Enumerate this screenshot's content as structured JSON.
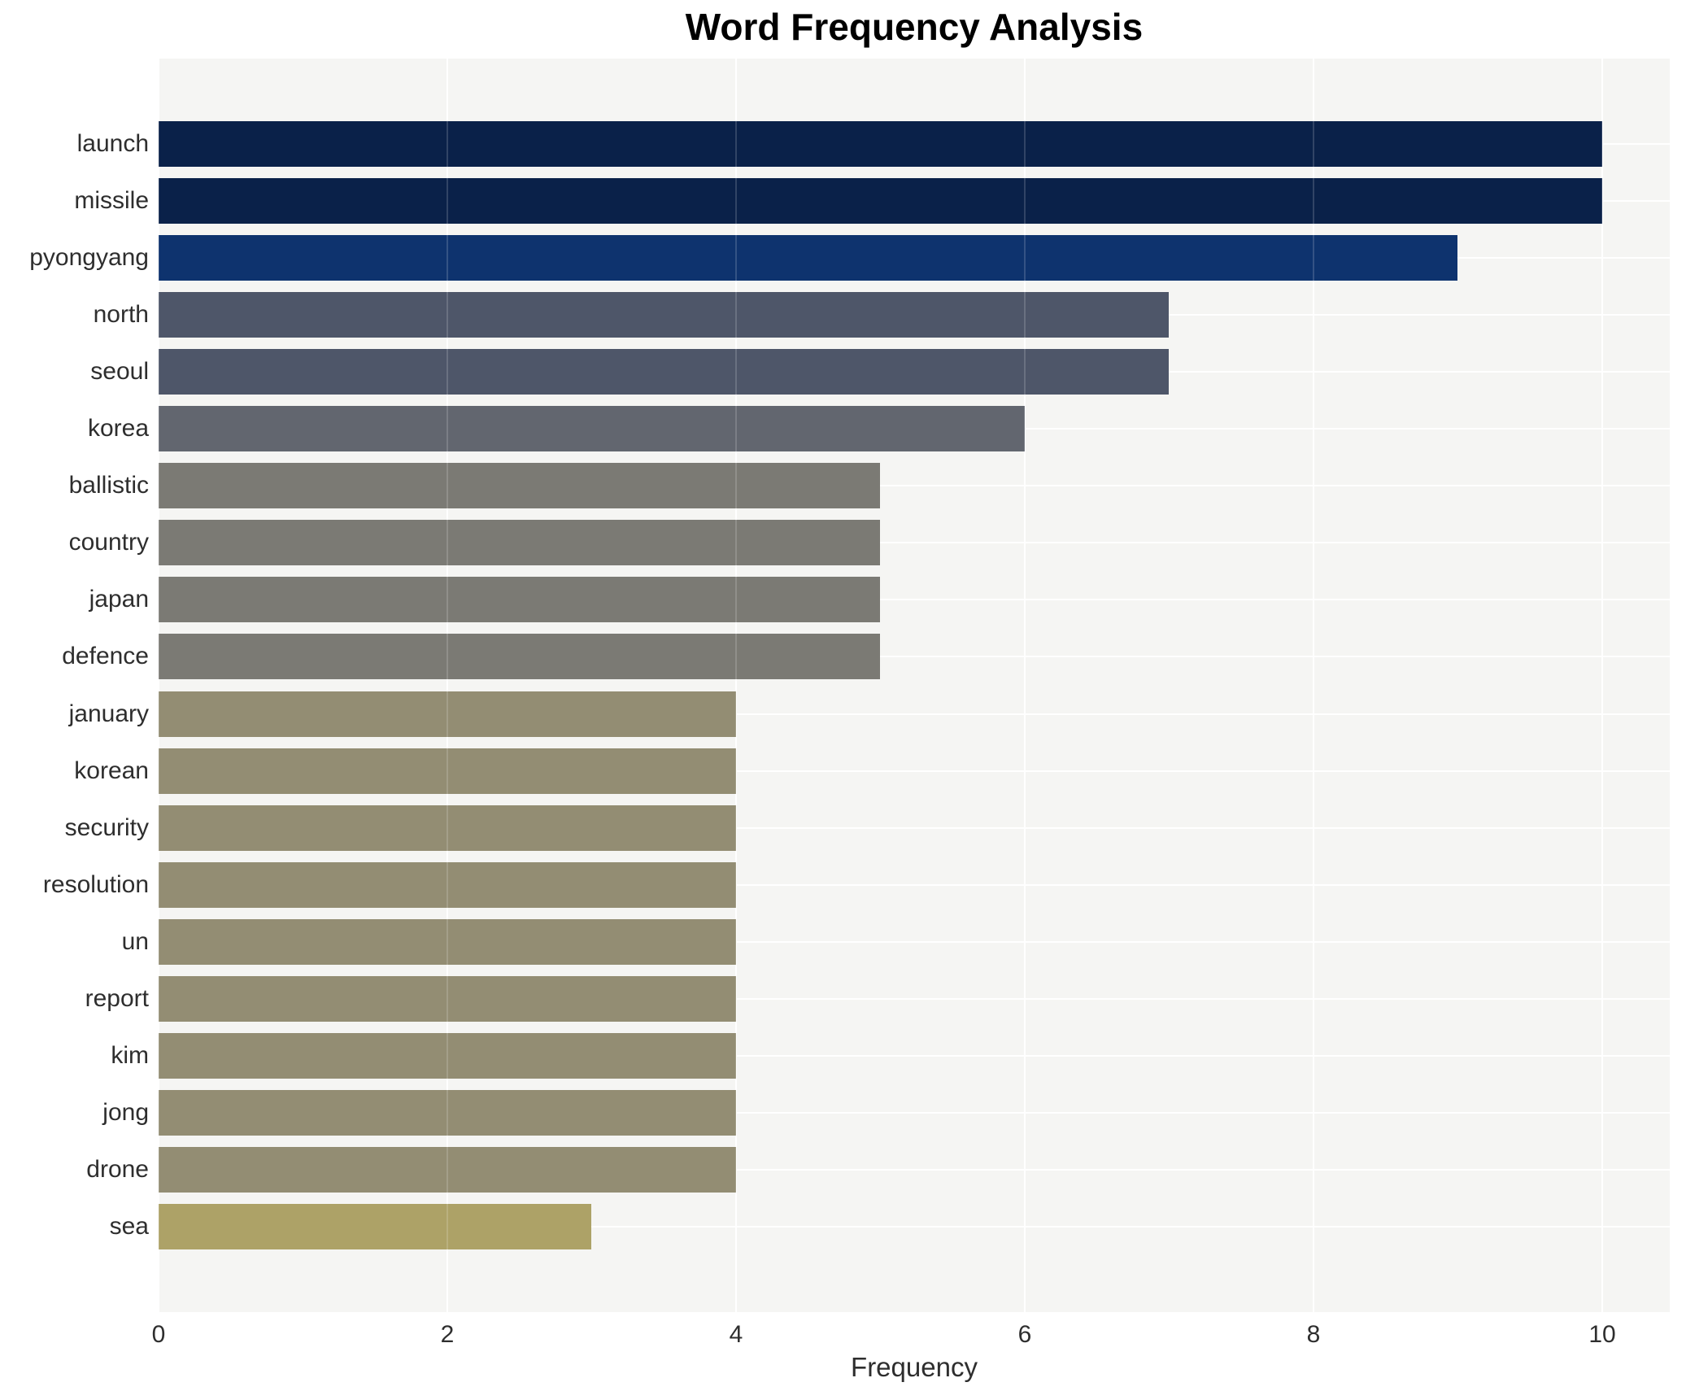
{
  "chart_data": {
    "type": "bar",
    "orientation": "horizontal",
    "title": "Word Frequency Analysis",
    "xlabel": "Frequency",
    "ylabel": "",
    "grid": true,
    "legend": "none",
    "xlim": [
      0,
      10.47
    ],
    "xticks": [
      0,
      2,
      4,
      6,
      8,
      10
    ],
    "categories": [
      "launch",
      "missile",
      "pyongyang",
      "north",
      "seoul",
      "korea",
      "ballistic",
      "country",
      "japan",
      "defence",
      "january",
      "korean",
      "security",
      "resolution",
      "un",
      "report",
      "kim",
      "jong",
      "drone",
      "sea"
    ],
    "values": [
      10,
      10,
      9,
      7,
      7,
      6,
      5,
      5,
      5,
      5,
      4,
      4,
      4,
      4,
      4,
      4,
      4,
      4,
      4,
      3
    ],
    "bar_colors": [
      "#0a2149",
      "#0a2149",
      "#0e336e",
      "#4e5669",
      "#4e5669",
      "#62666f",
      "#7b7a74",
      "#7b7a74",
      "#7b7a74",
      "#7b7a74",
      "#938d73",
      "#938d73",
      "#938d73",
      "#938d73",
      "#938d73",
      "#938d73",
      "#938d73",
      "#938d73",
      "#938d73",
      "#ada267"
    ]
  },
  "colors": {
    "background": "#ffffff",
    "panel_background": "#f5f5f3",
    "gridline": "#ffffff",
    "gridline_over_bars": "rgba(255,255,255,0.16)",
    "axis_text": "#2e2e2e",
    "title_text": "#000000"
  }
}
